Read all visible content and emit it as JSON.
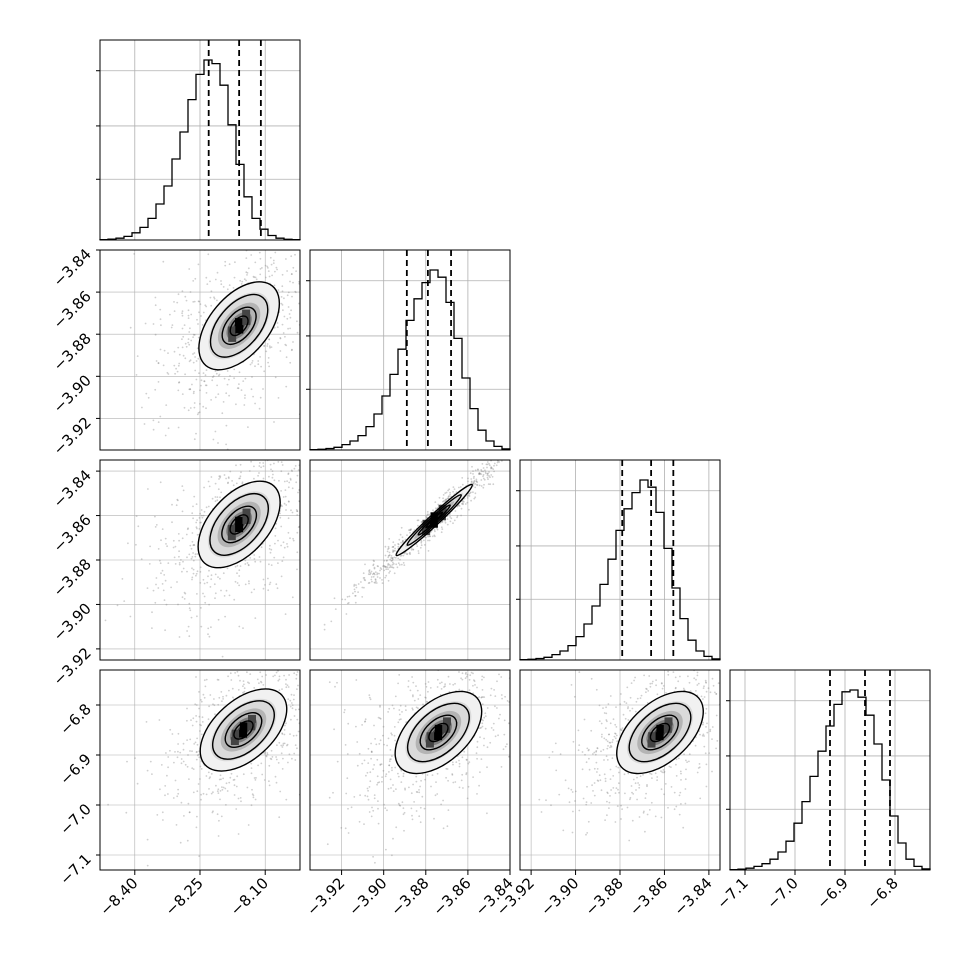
{
  "chart_data": {
    "type": "corner",
    "grid": true,
    "parameters": [
      {
        "range": [
          -8.48,
          -8.02
        ],
        "quantiles": [
          -8.23,
          -8.16,
          -8.11
        ],
        "hist": [
          0.002,
          0.005,
          0.01,
          0.02,
          0.04,
          0.07,
          0.12,
          0.2,
          0.3,
          0.45,
          0.6,
          0.78,
          0.92,
          1.0,
          0.98,
          0.86,
          0.64,
          0.42,
          0.24,
          0.12,
          0.06,
          0.025,
          0.01,
          0.004,
          0.002
        ]
      },
      {
        "range": [
          -3.935,
          -3.84
        ],
        "quantiles": [
          -3.889,
          -3.879,
          -3.868
        ],
        "tick_values": [
          -3.92,
          -3.9,
          -3.88,
          -3.86,
          -3.84
        ],
        "hist": [
          0.002,
          0.004,
          0.008,
          0.015,
          0.03,
          0.05,
          0.08,
          0.13,
          0.2,
          0.3,
          0.42,
          0.56,
          0.72,
          0.84,
          0.93,
          1.0,
          0.96,
          0.82,
          0.62,
          0.4,
          0.23,
          0.11,
          0.05,
          0.02,
          0.006
        ]
      },
      {
        "range": [
          -3.925,
          -3.835
        ],
        "quantiles": [
          -3.879,
          -3.866,
          -3.856
        ],
        "tick_values": [
          -3.92,
          -3.9,
          -3.88,
          -3.86,
          -3.84
        ],
        "hist": [
          0.002,
          0.004,
          0.008,
          0.015,
          0.03,
          0.05,
          0.08,
          0.13,
          0.2,
          0.3,
          0.42,
          0.56,
          0.72,
          0.84,
          0.93,
          1.0,
          0.96,
          0.82,
          0.62,
          0.4,
          0.23,
          0.11,
          0.05,
          0.02,
          0.006
        ]
      },
      {
        "range": [
          -7.13,
          -6.73
        ],
        "quantiles": [
          -6.93,
          -6.86,
          -6.81
        ],
        "tick_values": [
          -7.1,
          -7.0,
          -6.9,
          -6.8
        ],
        "hist": [
          0.002,
          0.005,
          0.01,
          0.02,
          0.035,
          0.06,
          0.1,
          0.16,
          0.26,
          0.38,
          0.52,
          0.66,
          0.8,
          0.92,
          0.99,
          1.0,
          0.96,
          0.86,
          0.7,
          0.5,
          0.3,
          0.15,
          0.06,
          0.02,
          0.006
        ]
      }
    ],
    "xtick_labels": [
      [
        "−8.40",
        "−8.25",
        "−8.10"
      ],
      [
        "−3.92",
        "−3.90",
        "−3.88",
        "−3.86",
        "−3.84"
      ],
      [
        "−3.92",
        "−3.90",
        "−3.88",
        "−3.86",
        "−3.84"
      ],
      [
        "−7.1",
        "−7.0",
        "−6.9",
        "−6.8"
      ]
    ],
    "ytick_labels": [
      [],
      [
        "−3.84",
        "−3.86",
        "−3.88",
        "−3.90",
        "−3.92"
      ],
      [
        "−3.84",
        "−3.86",
        "−3.88",
        "−3.90",
        "−3.92"
      ],
      [
        "−6.8",
        "−6.9",
        "−7.0",
        "−7.1"
      ]
    ],
    "xtick_values": [
      [
        -8.4,
        -8.25,
        -8.1
      ],
      [
        -3.92,
        -3.9,
        -3.88,
        -3.86,
        -3.84
      ],
      [
        -3.92,
        -3.9,
        -3.88,
        -3.86,
        -3.84
      ],
      [
        -7.1,
        -7.0,
        -6.9,
        -6.8
      ]
    ],
    "pairs": [
      {
        "row": 1,
        "col": 0,
        "center": [
          -8.16,
          -3.876
        ],
        "tilt": 50,
        "width": 0.55
      },
      {
        "row": 2,
        "col": 0,
        "center": [
          -8.16,
          -3.864
        ],
        "tilt": 48,
        "width": 0.55
      },
      {
        "row": 2,
        "col": 1,
        "center": [
          -3.876,
          -3.862
        ],
        "tilt": 43,
        "width": 0.1
      },
      {
        "row": 3,
        "col": 0,
        "center": [
          -8.15,
          -6.85
        ],
        "tilt": 42,
        "width": 0.6
      },
      {
        "row": 3,
        "col": 1,
        "center": [
          -3.874,
          -6.855
        ],
        "tilt": 42,
        "width": 0.6
      },
      {
        "row": 3,
        "col": 2,
        "center": [
          -3.862,
          -6.855
        ],
        "tilt": 42,
        "width": 0.6
      }
    ],
    "style": {
      "line_color": "#000000",
      "grid_color": "#b0b0b0",
      "point_color": "#888888"
    }
  }
}
